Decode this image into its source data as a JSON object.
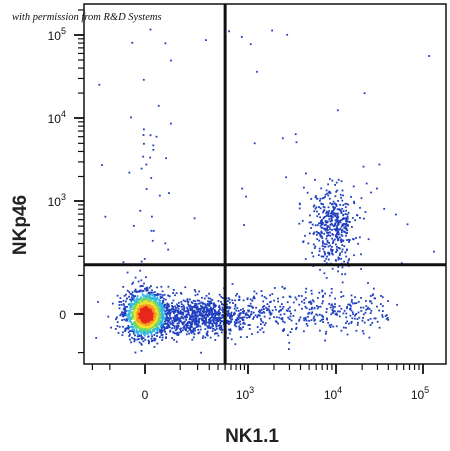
{
  "credit": "with permission from R&D Systems",
  "chart_data": {
    "type": "scatter",
    "title": "",
    "xlabel": "NK1.1",
    "ylabel": "NKp46",
    "x_scale": "biexponential",
    "y_scale": "biexponential",
    "x_ticks": [
      {
        "value": 0,
        "base": "0",
        "exp": ""
      },
      {
        "value": 1000,
        "base": "10",
        "exp": "3"
      },
      {
        "value": 10000,
        "base": "10",
        "exp": "4"
      },
      {
        "value": 100000,
        "base": "10",
        "exp": "5"
      }
    ],
    "y_ticks": [
      {
        "value": 0,
        "base": "0",
        "exp": ""
      },
      {
        "value": 1000,
        "base": "10",
        "exp": "3"
      },
      {
        "value": 10000,
        "base": "10",
        "exp": "4"
      },
      {
        "value": 100000,
        "base": "10",
        "exp": "5"
      }
    ],
    "gates": {
      "x": 500,
      "y": 150
    },
    "density_colors": [
      "#1f3fbf",
      "#2fb5e8",
      "#6bd86b",
      "#f2e12a",
      "#f59a1e",
      "#e8261e"
    ],
    "populations": [
      {
        "name": "",
        "center": [
          0,
          0
        ],
        "approx_events": 1500
      },
      {
        "name": "",
        "center": [
          200,
          0
        ],
        "approx_events": 800
      },
      {
        "name": "",
        "center": [
          5000,
          0
        ],
        "approx_events": 500
      },
      {
        "name": "",
        "center": [
          9000,
          500
        ],
        "approx_events": 450
      }
    ],
    "grid": false,
    "legend": "none"
  }
}
